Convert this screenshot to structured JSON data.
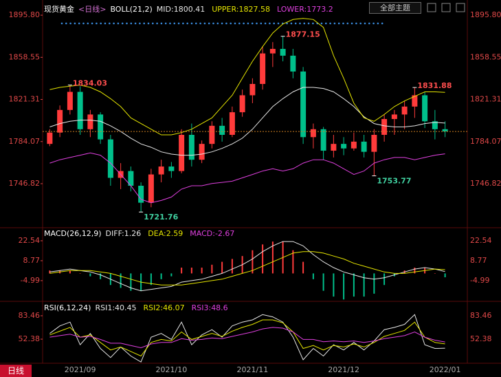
{
  "chart_data": [
    {
      "type": "candlestick",
      "title": "现货黄金",
      "subtitle": "<日线>",
      "indicator": "BOLL(21,2)",
      "categories": [
        null,
        null,
        null,
        "2021/09",
        null,
        null,
        null,
        null,
        null,
        null,
        null,
        null,
        "2021/10",
        null,
        null,
        null,
        null,
        null,
        null,
        null,
        "2021/11",
        null,
        null,
        null,
        null,
        null,
        null,
        null,
        null,
        "2021/12",
        null,
        null,
        null,
        null,
        null,
        null,
        null,
        null,
        null,
        "2022/01"
      ],
      "open": [
        1782,
        1792,
        1812,
        1828,
        1795,
        1808,
        1786,
        1752,
        1758,
        1745,
        1730,
        1755,
        1762,
        1758,
        1790,
        1768,
        1782,
        1798,
        1790,
        1810,
        1825,
        1835,
        1862,
        1866,
        1860,
        1846,
        1788,
        1795,
        1776,
        1782,
        1778,
        1784,
        1775,
        1790,
        1804,
        1808,
        1815,
        1825,
        1802,
        1795
      ],
      "high": [
        1795,
        1816,
        1834.03,
        1833,
        1812,
        1810,
        1790,
        1765,
        1762,
        1748,
        1760,
        1768,
        1766,
        1795,
        1800,
        1785,
        1802,
        1805,
        1815,
        1830,
        1840,
        1868,
        1872,
        1877.15,
        1866,
        1850,
        1800,
        1797,
        1790,
        1788,
        1792,
        1790,
        1795,
        1808,
        1812,
        1820,
        1831.88,
        1828,
        1812,
        1802
      ],
      "low": [
        1780,
        1788,
        1808,
        1790,
        1788,
        1782,
        1745,
        1742,
        1740,
        1721.76,
        1726,
        1748,
        1752,
        1756,
        1762,
        1765,
        1778,
        1784,
        1788,
        1806,
        1818,
        1830,
        1850,
        1855,
        1840,
        1782,
        1778,
        1768,
        1770,
        1772,
        1776,
        1770,
        1753.77,
        1784,
        1790,
        1795,
        1805,
        1796,
        1786,
        1788
      ],
      "close": [
        1792,
        1812,
        1828,
        1795,
        1808,
        1786,
        1752,
        1758,
        1745,
        1730,
        1755,
        1762,
        1758,
        1790,
        1768,
        1782,
        1798,
        1790,
        1810,
        1825,
        1835,
        1862,
        1866,
        1860,
        1846,
        1788,
        1795,
        1776,
        1782,
        1778,
        1784,
        1775,
        1790,
        1804,
        1808,
        1815,
        1825,
        1802,
        1795,
        1793
      ],
      "up_color": "#ff3b3b",
      "down_color": "#00c08b",
      "high_marks": [
        1834.03,
        1877.15,
        1831.88
      ],
      "low_marks": [
        1721.76,
        1753.77
      ],
      "series": [
        {
          "name": "MID:",
          "color": "#e8e8e8",
          "values": [
            1797,
            1800,
            1802,
            1803,
            1803,
            1802,
            1798,
            1793,
            1787,
            1782,
            1779,
            1775,
            1773,
            1772,
            1772,
            1773,
            1775,
            1778,
            1782,
            1787,
            1795,
            1805,
            1815,
            1822,
            1828,
            1832,
            1832,
            1831,
            1828,
            1822,
            1815,
            1806,
            1800,
            1798,
            1797,
            1797,
            1798,
            1800,
            1801,
            1800.41
          ]
        },
        {
          "name": "UPPER:",
          "color": "#e6e600",
          "values": [
            1830,
            1832,
            1833,
            1834,
            1832,
            1828,
            1822,
            1815,
            1805,
            1800,
            1795,
            1790,
            1790,
            1792,
            1795,
            1800,
            1805,
            1815,
            1825,
            1840,
            1855,
            1868,
            1880,
            1888,
            1892,
            1893,
            1892,
            1885,
            1860,
            1840,
            1818,
            1805,
            1802,
            1808,
            1815,
            1820,
            1824,
            1828,
            1828,
            1827.58
          ]
        },
        {
          "name": "LOWER:",
          "color": "#e040e0",
          "values": [
            1765,
            1768,
            1770,
            1772,
            1774,
            1772,
            1765,
            1755,
            1745,
            1733,
            1730,
            1732,
            1735,
            1742,
            1745,
            1745,
            1747,
            1748,
            1749,
            1752,
            1755,
            1758,
            1760,
            1758,
            1760,
            1765,
            1768,
            1768,
            1765,
            1760,
            1755,
            1758,
            1765,
            1768,
            1770,
            1770,
            1768,
            1770,
            1772,
            1773.2
          ]
        }
      ],
      "ylim": [
        1708.5,
        1900.1
      ],
      "yticks": [
        {
          "value": 1895.8,
          "label": "1895.80"
        },
        1858.55,
        1821.31,
        1784.07,
        1746.82
      ]
    },
    {
      "type": "macd",
      "title": "MACD(26,12,9)",
      "series": [
        {
          "name": "DIFF:",
          "color": "#e8e8e8",
          "values": [
            1,
            2,
            3,
            2,
            1,
            -1,
            -4,
            -7,
            -10,
            -12,
            -11,
            -10,
            -9,
            -6,
            -5,
            -4,
            -2,
            0,
            3,
            6,
            10,
            15,
            19,
            22,
            22,
            19,
            13,
            8,
            4,
            1,
            -1,
            -3,
            -4,
            -3,
            -1,
            1,
            3,
            4,
            3,
            1.26
          ]
        },
        {
          "name": "DEA:",
          "color": "#e6e600",
          "values": [
            0,
            1,
            2,
            2,
            2,
            1,
            0,
            -2,
            -4,
            -6,
            -7,
            -8,
            -8,
            -8,
            -7,
            -6,
            -5,
            -4,
            -2,
            0,
            2,
            5,
            8,
            11,
            14,
            15,
            15,
            14,
            12,
            10,
            7,
            5,
            3,
            1,
            0,
            0,
            1,
            2,
            3,
            2.59
          ]
        },
        {
          "name": "MACD:",
          "color": "#e040e0",
          "bars": true,
          "values": [
            2,
            2,
            2,
            0,
            -2,
            -4,
            -8,
            -10,
            -12,
            -12,
            -8,
            -4,
            -2,
            4,
            4,
            4,
            6,
            8,
            10,
            12,
            16,
            20,
            22,
            22,
            16,
            8,
            -4,
            -12,
            -16,
            -18,
            -16,
            -16,
            -14,
            -8,
            -2,
            2,
            4,
            4,
            0,
            -2.67
          ]
        }
      ],
      "ylim": [
        -18.8,
        30.6
      ],
      "yticks": [
        22.54,
        8.77,
        -4.99
      ]
    },
    {
      "type": "line",
      "title": "RSI(6,12,24)",
      "series": [
        {
          "name": "RSI1:",
          "color": "#e8e8e8",
          "values": [
            60,
            70,
            75,
            45,
            60,
            40,
            28,
            42,
            30,
            22,
            55,
            60,
            52,
            75,
            45,
            58,
            65,
            55,
            70,
            75,
            78,
            85,
            82,
            75,
            55,
            25,
            40,
            30,
            45,
            38,
            48,
            38,
            50,
            65,
            68,
            72,
            85,
            45,
            40,
            40.45
          ]
        },
        {
          "name": "RSI2:",
          "color": "#e6e600",
          "values": [
            58,
            63,
            68,
            55,
            58,
            48,
            38,
            42,
            36,
            30,
            48,
            52,
            50,
            62,
            52,
            56,
            60,
            56,
            63,
            68,
            72,
            78,
            78,
            74,
            62,
            40,
            44,
            38,
            44,
            42,
            46,
            42,
            48,
            56,
            60,
            64,
            75,
            55,
            48,
            46.07
          ]
        },
        {
          "name": "RSI3:",
          "color": "#e040e0",
          "values": [
            55,
            57,
            59,
            55,
            56,
            52,
            47,
            47,
            44,
            41,
            46,
            48,
            48,
            53,
            51,
            52,
            54,
            53,
            56,
            59,
            62,
            66,
            68,
            67,
            62,
            52,
            52,
            49,
            50,
            49,
            50,
            48,
            50,
            53,
            55,
            57,
            62,
            55,
            51,
            48.6
          ]
        }
      ],
      "ylim": [
        20.4,
        100.8
      ],
      "yticks": [
        83.46,
        52.38
      ]
    }
  ],
  "toolbar": {
    "theme_button": "全部主题",
    "period_button": "日线"
  }
}
